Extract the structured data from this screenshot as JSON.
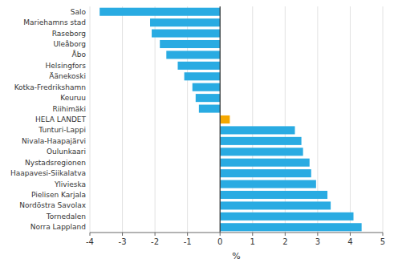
{
  "chart_data": {
    "type": "bar",
    "orientation": "horizontal",
    "categories": [
      "Salo",
      "Mariehamns stad",
      "Raseborg",
      "Uleåborg",
      "Åbo",
      "Helsingfors",
      "Äänekoski",
      "Kotka-Fredrikshamn",
      "Keuruu",
      "Riihimäki",
      "HELA LANDET",
      "Tunturi-Lappi",
      "Nivala-Haapajärvi",
      "Oulunkaari",
      "Nystadsregionen",
      "Haapavesi-Siikalatva",
      "Ylivieska",
      "Pielisen Karjala",
      "Nordöstra Savolax",
      "Tornedalen",
      "Norra Lappland"
    ],
    "values": [
      -3.7,
      -2.15,
      -2.1,
      -1.85,
      -1.65,
      -1.3,
      -1.1,
      -0.85,
      -0.75,
      -0.65,
      0.3,
      2.3,
      2.5,
      2.55,
      2.75,
      2.8,
      2.95,
      3.3,
      3.4,
      4.1,
      4.35
    ],
    "colors": [
      "#29abe2",
      "#29abe2",
      "#29abe2",
      "#29abe2",
      "#29abe2",
      "#29abe2",
      "#29abe2",
      "#29abe2",
      "#29abe2",
      "#29abe2",
      "#f5a800",
      "#29abe2",
      "#29abe2",
      "#29abe2",
      "#29abe2",
      "#29abe2",
      "#29abe2",
      "#29abe2",
      "#29abe2",
      "#29abe2",
      "#29abe2"
    ],
    "xlabel": "%",
    "xlim": [
      -4,
      5
    ],
    "xticks": [
      -4,
      -3,
      -2,
      -1,
      0,
      1,
      2,
      3,
      4,
      5
    ],
    "grid": true
  }
}
